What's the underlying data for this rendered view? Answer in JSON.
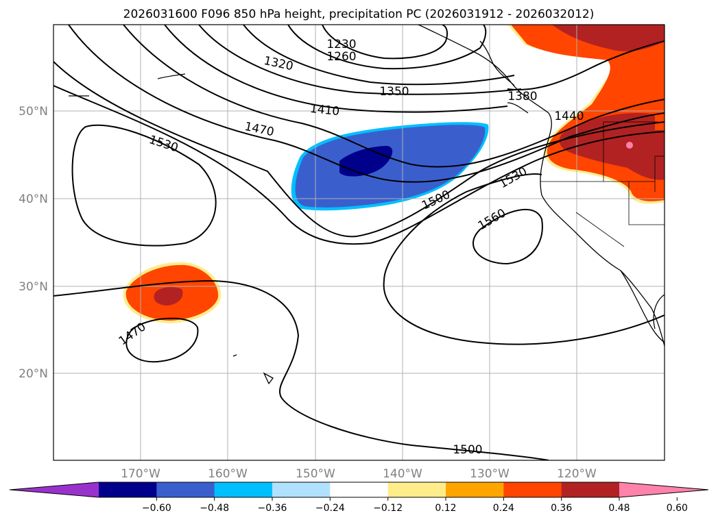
{
  "title": "2026031600 F096 850 hPa height, precipitation PC (2026031912 - 2026032012)",
  "lat_labels": [
    "50°N",
    "40°N",
    "30°N",
    "20°N"
  ],
  "lon_labels": [
    "170°W",
    "160°W",
    "150°W",
    "140°W",
    "130°W",
    "120°W"
  ],
  "contour_labels": [
    "1230",
    "1260",
    "1320",
    "1350",
    "1380",
    "1410",
    "1440",
    "1470",
    "1530",
    "1500",
    "1530",
    "1560",
    "1470",
    "1500"
  ],
  "colorbar": {
    "ticks": [
      "−0.60",
      "−0.48",
      "−0.36",
      "−0.24",
      "−0.12",
      "0.12",
      "0.24",
      "0.36",
      "0.48",
      "0.60"
    ],
    "colors": [
      "#9932CC",
      "#00008B",
      "#3A5FCD",
      "#00BFFF",
      "#B0E2FF",
      "#FFFFFF",
      "#FFEC8B",
      "#FFA500",
      "#FF4500",
      "#B22222",
      "#FF82AB"
    ]
  },
  "map": {
    "lat_range": [
      10,
      60
    ],
    "lon_range": [
      -180,
      -110
    ],
    "height_contour_interval": 30,
    "units": "hPa height (gpm); precipitation PC"
  }
}
